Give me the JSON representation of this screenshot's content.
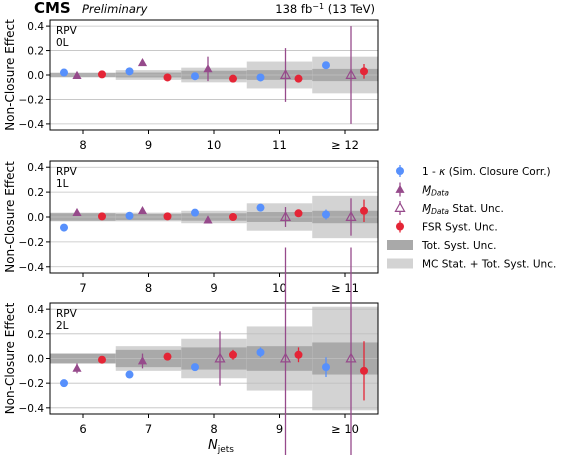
{
  "header": {
    "experiment": "CMS",
    "status": "Preliminary",
    "lumi": "138 fb",
    "lumi_exp": "−1",
    "energy": " (13 TeV)"
  },
  "xlabel_main": "N",
  "xlabel_sub": "jets",
  "legend": [
    {
      "key": "one_minus_kappa",
      "label_pre": "1 - ",
      "label_sym": "κ",
      "label_post": " (Sim. Closure Corr.)",
      "color": "#5790fc",
      "marker": "circle"
    },
    {
      "key": "mpt_data",
      "label_pre": "",
      "label_sym": "Ɱ",
      "label_sub": "Data",
      "label_post": "",
      "color": "#964a8b",
      "marker": "triangle"
    },
    {
      "key": "mpt_data_stat",
      "label_pre": "",
      "label_sym": "Ɱ",
      "label_sub": "Data",
      "label_post": " Stat. Unc.",
      "color": "#964a8b",
      "marker": "triangle-open"
    },
    {
      "key": "fsr_syst",
      "label_pre": "FSR Syst. Unc.",
      "label_sym": "",
      "label_post": "",
      "color": "#e42536",
      "marker": "circle"
    },
    {
      "key": "tot_syst",
      "label_pre": "Tot. Syst. Unc.",
      "label_sym": "",
      "label_post": "",
      "color": "#a9a9a9",
      "marker": "box"
    },
    {
      "key": "mc_stat_tot_syst",
      "label_pre": "MC Stat. + Tot. Syst. Unc.",
      "label_sym": "",
      "label_post": "",
      "color": "#d3d3d3",
      "marker": "box"
    }
  ],
  "colors": {
    "one_minus_kappa": "#5790fc",
    "mpt": "#964a8b",
    "fsr": "#e42536",
    "tot_syst": "#a9a9a9",
    "mc_stat": "#d3d3d3"
  },
  "chart_data": [
    {
      "type": "scatter",
      "tag_line1": "RPV",
      "tag_line2": "0L",
      "ylabel": "Non-Closure Effect",
      "ylim": [
        -0.45,
        0.45
      ],
      "yticks": [
        -0.4,
        -0.2,
        0.0,
        0.2,
        0.4
      ],
      "ytick_labels": [
        "−0.4",
        "−0.2",
        "0.0",
        "0.2",
        "0.4"
      ],
      "categories": [
        "8",
        "9",
        "10",
        "11",
        "≥ 12"
      ],
      "mc_stat_tot_syst": [
        0.02,
        0.04,
        0.06,
        0.11,
        0.15
      ],
      "tot_syst": [
        0.015,
        0.02,
        0.035,
        0.04,
        0.05
      ],
      "one_minus_kappa": {
        "y": [
          0.02,
          0.03,
          -0.01,
          -0.02,
          0.08
        ],
        "err": [
          0.0,
          0.0,
          0.0,
          0.0,
          0.02
        ]
      },
      "mpt_data": {
        "y": [
          -0.005,
          0.1,
          0.05,
          null,
          null
        ],
        "err": [
          0.0,
          0.0,
          0.1,
          null,
          null
        ]
      },
      "mpt_data_stat": {
        "y": [
          null,
          null,
          null,
          0.0,
          0.0
        ],
        "err": [
          null,
          null,
          null,
          0.22,
          0.4
        ]
      },
      "fsr_syst": {
        "y": [
          0.005,
          -0.02,
          -0.03,
          -0.03,
          0.03
        ],
        "err": [
          0.0,
          0.0,
          0.0,
          0.03,
          0.06
        ]
      }
    },
    {
      "type": "scatter",
      "tag_line1": "RPV",
      "tag_line2": "1L",
      "ylabel": "Non-Closure Effect",
      "ylim": [
        -0.45,
        0.45
      ],
      "yticks": [
        -0.4,
        -0.2,
        0.0,
        0.2,
        0.4
      ],
      "ytick_labels": [
        "−0.4",
        "−0.2",
        "0.0",
        "0.2",
        "0.4"
      ],
      "categories": [
        "7",
        "8",
        "9",
        "10",
        "≥ 11"
      ],
      "mc_stat_tot_syst": [
        0.035,
        0.035,
        0.05,
        0.11,
        0.17
      ],
      "tot_syst": [
        0.03,
        0.025,
        0.03,
        0.04,
        0.05
      ],
      "one_minus_kappa": {
        "y": [
          -0.085,
          0.01,
          0.035,
          0.075,
          0.02
        ],
        "err": [
          0.0,
          0.0,
          0.0,
          0.0,
          0.04
        ]
      },
      "mpt_data": {
        "y": [
          0.035,
          0.05,
          -0.025,
          null,
          null
        ],
        "err": [
          0.0,
          0.0,
          0.0,
          null,
          null
        ]
      },
      "mpt_data_stat": {
        "y": [
          null,
          null,
          null,
          0.0,
          0.0
        ],
        "err": [
          null,
          null,
          null,
          0.08,
          0.15
        ]
      },
      "fsr_syst": {
        "y": [
          0.005,
          0.005,
          0.0,
          0.03,
          0.05
        ],
        "err": [
          0.0,
          0.0,
          0.0,
          0.0,
          0.09
        ]
      }
    },
    {
      "type": "scatter",
      "tag_line1": "RPV",
      "tag_line2": "2L",
      "ylabel": "Non-Closure Effect",
      "ylim": [
        -0.45,
        0.45
      ],
      "yticks": [
        -0.4,
        -0.2,
        0.0,
        0.2,
        0.4
      ],
      "ytick_labels": [
        "−0.4",
        "−0.2",
        "0.0",
        "0.2",
        "0.4"
      ],
      "categories": [
        "6",
        "7",
        "8",
        "9",
        "≥ 10"
      ],
      "mc_stat_tot_syst": [
        0.04,
        0.1,
        0.16,
        0.26,
        0.42
      ],
      "tot_syst": [
        0.04,
        0.07,
        0.09,
        0.1,
        0.13
      ],
      "one_minus_kappa": {
        "y": [
          -0.2,
          -0.13,
          -0.07,
          0.05,
          -0.07
        ],
        "err": [
          0.0,
          0.0,
          0.0,
          0.04,
          0.08
        ]
      },
      "mpt_data": {
        "y": [
          -0.08,
          -0.02,
          null,
          null,
          null
        ],
        "err": [
          0.04,
          0.06,
          null,
          null,
          null
        ]
      },
      "mpt_data_stat": {
        "y": [
          null,
          null,
          0.0,
          0.0,
          0.0
        ],
        "err": [
          null,
          null,
          0.22,
          0.9,
          0.9
        ]
      },
      "fsr_syst": {
        "y": [
          -0.01,
          0.015,
          0.03,
          0.03,
          -0.1
        ],
        "err": [
          0.0,
          0.0,
          0.04,
          0.06,
          0.24
        ]
      }
    }
  ]
}
